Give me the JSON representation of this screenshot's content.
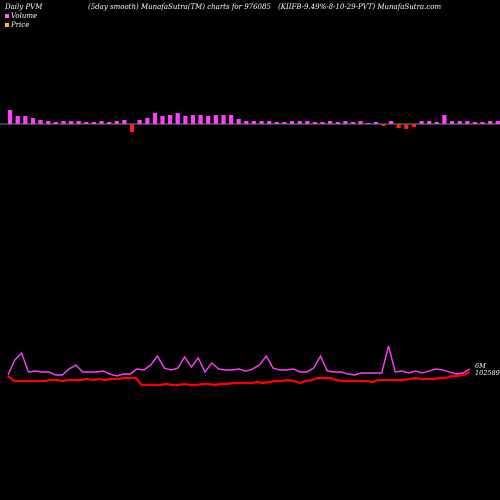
{
  "header": {
    "left": "Daily PVM",
    "center": "(5day smooth) MunafaSutra(TM) charts for 976085",
    "right": "(KIIFB-9.49%-8-10-29-PVT) MunafaSutra.com"
  },
  "legend": [
    {
      "label": "Volume",
      "color": "#ff66ff"
    },
    {
      "label": "Price",
      "color": "#ffaa55"
    }
  ],
  "colors": {
    "price_line": "#ff0000",
    "pvm_line": "#ff40ff",
    "vol_up": "#ff40ff",
    "vol_down": "#ff2020",
    "vol_green": "#33dd33",
    "baseline": "#ffffff"
  },
  "chart_data": [
    {
      "type": "bar",
      "name": "volume",
      "values": [
        14,
        8,
        8,
        6,
        4,
        3,
        2,
        3,
        3,
        3,
        2,
        2,
        3,
        2,
        3,
        4,
        -8,
        4,
        6,
        11,
        8,
        9,
        11,
        8,
        9,
        9,
        8,
        9,
        9,
        9,
        5,
        3,
        3,
        3,
        3,
        2,
        2,
        3,
        3,
        3,
        2,
        2,
        3,
        2,
        3,
        2,
        3,
        1,
        2,
        -2,
        3,
        -4,
        -5,
        -3,
        3,
        3,
        2,
        9,
        3,
        3,
        3,
        2,
        2,
        3,
        3,
        2,
        3,
        2,
        3,
        -3,
        -2,
        -4,
        -5,
        -3,
        -4,
        -3
      ],
      "colors": [
        "up",
        "up",
        "up",
        "up",
        "up",
        "up",
        "up",
        "up",
        "up",
        "up",
        "up",
        "up",
        "up",
        "up",
        "up",
        "up",
        "down",
        "up",
        "up",
        "up",
        "up",
        "up",
        "up",
        "up",
        "up",
        "up",
        "up",
        "up",
        "up",
        "up",
        "up",
        "up",
        "up",
        "up",
        "up",
        "up",
        "up",
        "up",
        "up",
        "up",
        "up",
        "up",
        "up",
        "up",
        "up",
        "up",
        "up",
        "up",
        "up",
        "down",
        "up",
        "down",
        "down",
        "down",
        "up",
        "up",
        "up",
        "up",
        "up",
        "up",
        "up",
        "up",
        "up",
        "up",
        "up",
        "up",
        "up",
        "up",
        "up",
        "down",
        "green",
        "up",
        "green",
        "up",
        "green",
        "green"
      ]
    },
    {
      "type": "line",
      "name": "pvm",
      "values": [
        375,
        360,
        353,
        372,
        371,
        372,
        372,
        375,
        375,
        369,
        365,
        372,
        372,
        372,
        371,
        374,
        376,
        374,
        374,
        369,
        370,
        365,
        356,
        368,
        370,
        368,
        357,
        367,
        358,
        372,
        363,
        369,
        370,
        370,
        369,
        371,
        369,
        365,
        356,
        368,
        370,
        370,
        369,
        372,
        372,
        368,
        356,
        371,
        372,
        372,
        374,
        375,
        373,
        373,
        373,
        373,
        346,
        372,
        371,
        373,
        371,
        373,
        371,
        369,
        370,
        372,
        374,
        373,
        369
      ],
      "label": "6M"
    },
    {
      "type": "line",
      "name": "price",
      "values": [
        376,
        381,
        381,
        381,
        381,
        381,
        381,
        380,
        380,
        381,
        380,
        380,
        380,
        379,
        380,
        379,
        380,
        379,
        379,
        378,
        378,
        378,
        385,
        385,
        385,
        385,
        384,
        385,
        385,
        384,
        385,
        385,
        384,
        384,
        385,
        384,
        384,
        383,
        383,
        383,
        383,
        382,
        383,
        382,
        381,
        381,
        380,
        381,
        383,
        381,
        380,
        378,
        378,
        378,
        380,
        381,
        381,
        381,
        381,
        381,
        382,
        380,
        380,
        380,
        380,
        380,
        379,
        378,
        379,
        379,
        379,
        378,
        378,
        376,
        376,
        375,
        372
      ],
      "label": "102589.0"
    }
  ]
}
